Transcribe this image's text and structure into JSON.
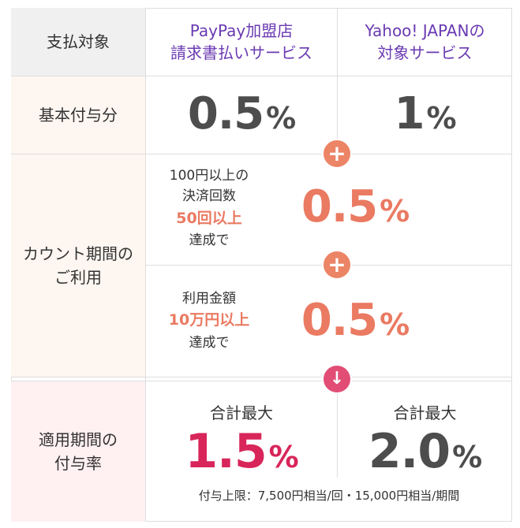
{
  "table": {
    "header": {
      "label": "支払対象",
      "col1_line1": "PayPay加盟店",
      "col1_line2": "請求書払いサービス",
      "col2_line1": "Yahoo! JAPANの",
      "col2_line2": "対象サービス"
    },
    "base_row": {
      "label": "基本付与分",
      "col1_value": "0.5",
      "col2_value": "1",
      "unit": "%"
    },
    "count_row": {
      "label_line1": "カウント期間の",
      "label_line2": "ご利用",
      "cond1_line1": "100円以上の",
      "cond1_line2": "決済回数",
      "cond1_highlight": "50回以上",
      "cond1_line4": "達成で",
      "cond1_value": "0.5",
      "cond2_line1": "利用金額",
      "cond2_highlight": "10万円以上",
      "cond2_line3": "達成で",
      "cond2_value": "0.5",
      "unit": "%"
    },
    "total_row": {
      "label_line1": "適用期間の",
      "label_line2": "付与率",
      "col1_caption": "合計最大",
      "col1_value": "1.5",
      "col2_caption": "合計最大",
      "col2_value": "2.0",
      "unit": "%",
      "note": "付与上限：7,500円相当/回・15,000円相当/期間"
    },
    "icons": {
      "plus": "+",
      "down": "↓"
    },
    "colors": {
      "header_text": "#6a3ab2",
      "accent_salmon": "#ea7a62",
      "accent_crimson": "#d8265a",
      "value_gray": "#4d4d4d"
    }
  }
}
